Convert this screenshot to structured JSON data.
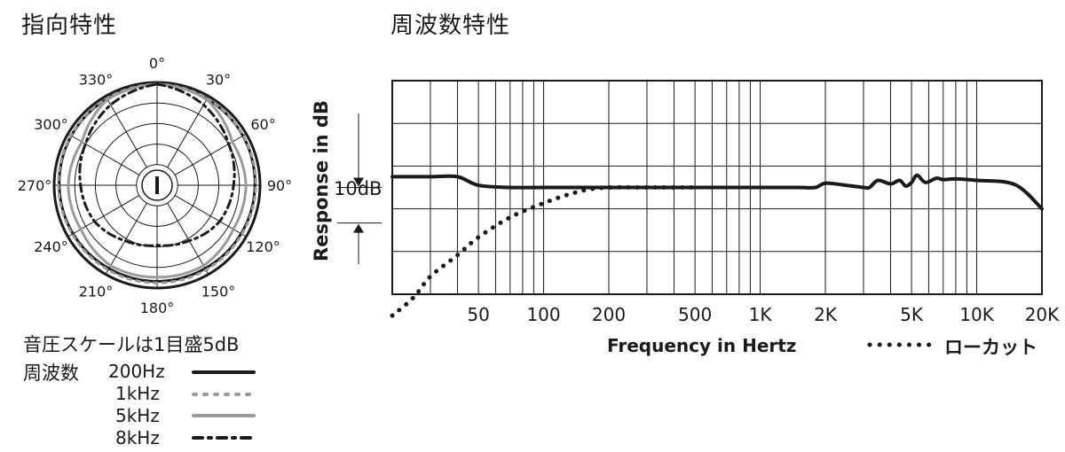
{
  "polar": {
    "title": "指向特性",
    "angle_labels": [
      {
        "deg": 0,
        "text": "0°"
      },
      {
        "deg": 30,
        "text": "30°"
      },
      {
        "deg": 60,
        "text": "60°"
      },
      {
        "deg": 90,
        "text": "90°"
      },
      {
        "deg": 120,
        "text": "120°"
      },
      {
        "deg": 150,
        "text": "150°"
      },
      {
        "deg": 180,
        "text": "180°"
      },
      {
        "deg": 210,
        "text": "210°"
      },
      {
        "deg": 240,
        "text": "240°"
      },
      {
        "deg": 270,
        "text": "270°"
      },
      {
        "deg": 300,
        "text": "300°"
      },
      {
        "deg": 330,
        "text": "330°"
      }
    ],
    "scale_note": "音圧スケールは1目盛5dB",
    "freq_heading": "周波数",
    "legend": [
      {
        "label": "200Hz",
        "style": "solid",
        "color": "#1a1a1a"
      },
      {
        "label": "1kHz",
        "style": "dotted",
        "color": "#9a9a9a"
      },
      {
        "label": "5kHz",
        "style": "solid",
        "color": "#9a9a9a"
      },
      {
        "label": "8kHz",
        "style": "dashdot",
        "color": "#1a1a1a"
      }
    ]
  },
  "freq": {
    "title": "周波数特性",
    "ylabel": "Response in dB",
    "scale_label": "10dB",
    "xlabel": "Frequency in Hertz",
    "lowcut_label": "ローカット",
    "tick_labels": [
      {
        "f": 50,
        "text": "50"
      },
      {
        "f": 100,
        "text": "100"
      },
      {
        "f": 200,
        "text": "200"
      },
      {
        "f": 500,
        "text": "500"
      },
      {
        "f": 1000,
        "text": "1K"
      },
      {
        "f": 2000,
        "text": "2K"
      },
      {
        "f": 5000,
        "text": "5K"
      },
      {
        "f": 10000,
        "text": "10K"
      },
      {
        "f": 20000,
        "text": "20K"
      }
    ]
  },
  "chart_data": [
    {
      "type": "polar",
      "title": "指向特性",
      "unit_note": "1 ring = 5 dB",
      "theta_deg": [
        0,
        30,
        60,
        90,
        120,
        150,
        180,
        210,
        240,
        270,
        300,
        330
      ],
      "series": [
        {
          "name": "200Hz",
          "color": "#1a1a1a",
          "style": "solid",
          "r_db_below": [
            0,
            0.3,
            0.5,
            0.8,
            1.0,
            1.2,
            1.2,
            1.2,
            1.0,
            0.8,
            0.5,
            0.3
          ]
        },
        {
          "name": "1kHz",
          "color": "#9a9a9a",
          "style": "dotted",
          "r_db_below": [
            0,
            0.2,
            0.4,
            0.6,
            0.8,
            0.8,
            0.8,
            0.8,
            0.8,
            0.6,
            0.4,
            0.2
          ]
        },
        {
          "name": "5kHz",
          "color": "#9a9a9a",
          "style": "solid",
          "r_db_below": [
            0,
            0.5,
            3.5,
            3.0,
            3.2,
            2.0,
            2.2,
            2.0,
            3.2,
            3.0,
            3.5,
            0.5
          ]
        },
        {
          "name": "8kHz",
          "color": "#1a1a1a",
          "style": "dashdot",
          "r_db_below": [
            0,
            2.0,
            4.5,
            6.0,
            7.0,
            9.0,
            10.0,
            9.0,
            7.0,
            6.0,
            4.5,
            2.0
          ]
        }
      ]
    },
    {
      "type": "line",
      "title": "周波数特性",
      "xlabel": "Frequency in Hertz",
      "ylabel": "Response in dB",
      "xscale": "log",
      "xlim": [
        20,
        20000
      ],
      "ylim": [
        -15,
        15
      ],
      "grid": true,
      "series": [
        {
          "name": "",
          "color": "#1a1a1a",
          "style": "solid",
          "x": [
            20,
            30,
            40,
            50,
            70,
            100,
            200,
            500,
            1000,
            1500,
            1800,
            2000,
            2500,
            3000,
            3200,
            3500,
            4000,
            4400,
            4700,
            5000,
            5300,
            5800,
            6500,
            7000,
            8000,
            10000,
            15000,
            20000
          ],
          "y": [
            1.5,
            1.5,
            1.5,
            0.3,
            0.0,
            0.0,
            0.0,
            0.0,
            0.0,
            0.0,
            0.0,
            0.6,
            0.3,
            0.0,
            0.0,
            1.0,
            0.5,
            1.0,
            0.2,
            0.7,
            1.7,
            0.7,
            1.3,
            1.1,
            1.2,
            1.0,
            0.4,
            -3.0
          ]
        },
        {
          "name": "ローカット",
          "color": "#1a1a1a",
          "style": "dotted",
          "x": [
            20,
            25,
            30,
            40,
            50,
            70,
            100,
            130,
            160,
            200,
            300,
            500
          ],
          "y": [
            -18.0,
            -15.5,
            -12.5,
            -9.5,
            -7.0,
            -4.2,
            -2.2,
            -1.0,
            -0.3,
            0.0,
            0.0,
            0.0
          ]
        }
      ]
    }
  ]
}
